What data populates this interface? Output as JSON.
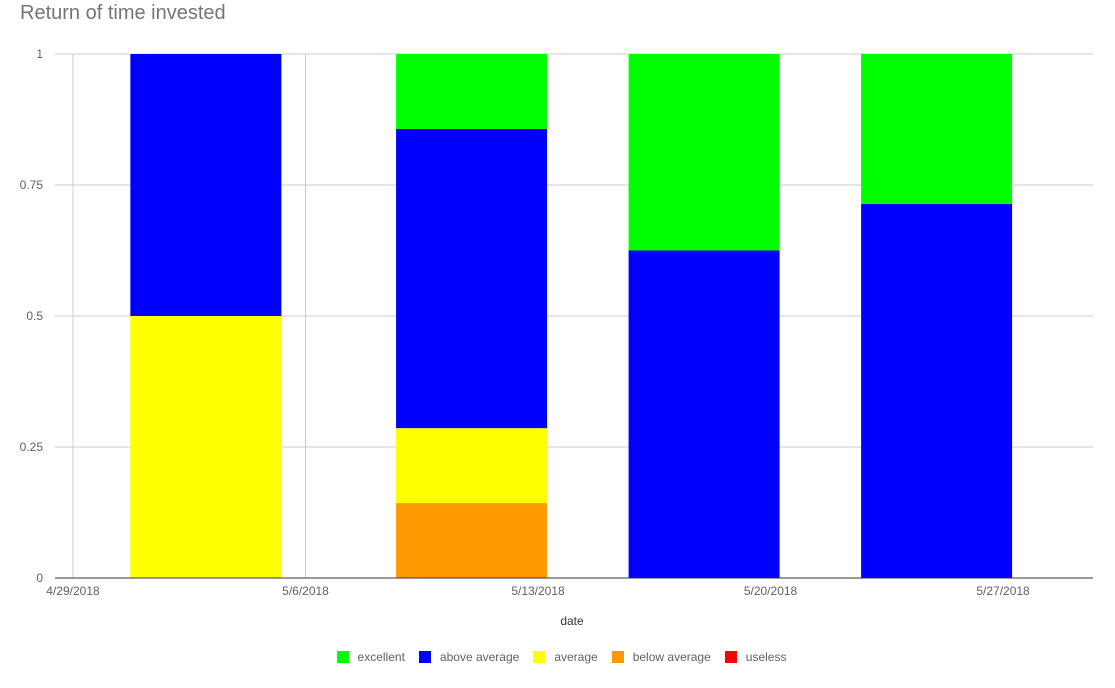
{
  "chart_data": {
    "type": "bar",
    "stacked": "percent",
    "title": "Return of time invested",
    "xlabel": "date",
    "ylabel": "",
    "ylim": [
      0,
      1
    ],
    "xlim": [
      "2018-04-28T11:00",
      "2018-05-29T17:00"
    ],
    "yticks": [
      0,
      0.25,
      0.5,
      0.75,
      1
    ],
    "ytick_labels": [
      "0",
      "0.25",
      "0.5",
      "0.75",
      "1"
    ],
    "xticks": [
      "2018-04-29",
      "2018-05-06",
      "2018-05-13",
      "2018-05-20",
      "2018-05-27"
    ],
    "xtick_labels": [
      "4/29/2018",
      "5/6/2018",
      "5/13/2018",
      "5/20/2018",
      "5/27/2018"
    ],
    "grid": true,
    "legend_position": "bottom",
    "x": [
      "2018-05-03",
      "2018-05-11",
      "2018-05-18",
      "2018-05-25"
    ],
    "series": [
      {
        "name": "useless",
        "color": "#ff0000",
        "values": [
          0,
          0,
          0,
          0
        ]
      },
      {
        "name": "below average",
        "color": "#ff9900",
        "values": [
          0,
          0.143,
          0,
          0
        ]
      },
      {
        "name": "average",
        "color": "#ffff00",
        "values": [
          0.5,
          0.143,
          0,
          0
        ]
      },
      {
        "name": "above average",
        "color": "#0000ff",
        "values": [
          0.5,
          0.571,
          0.625,
          0.714
        ]
      },
      {
        "name": "excellent",
        "color": "#00ff00",
        "values": [
          0,
          0.143,
          0.375,
          0.286
        ]
      }
    ],
    "legend_order": [
      "excellent",
      "above average",
      "average",
      "below average",
      "useless"
    ]
  }
}
